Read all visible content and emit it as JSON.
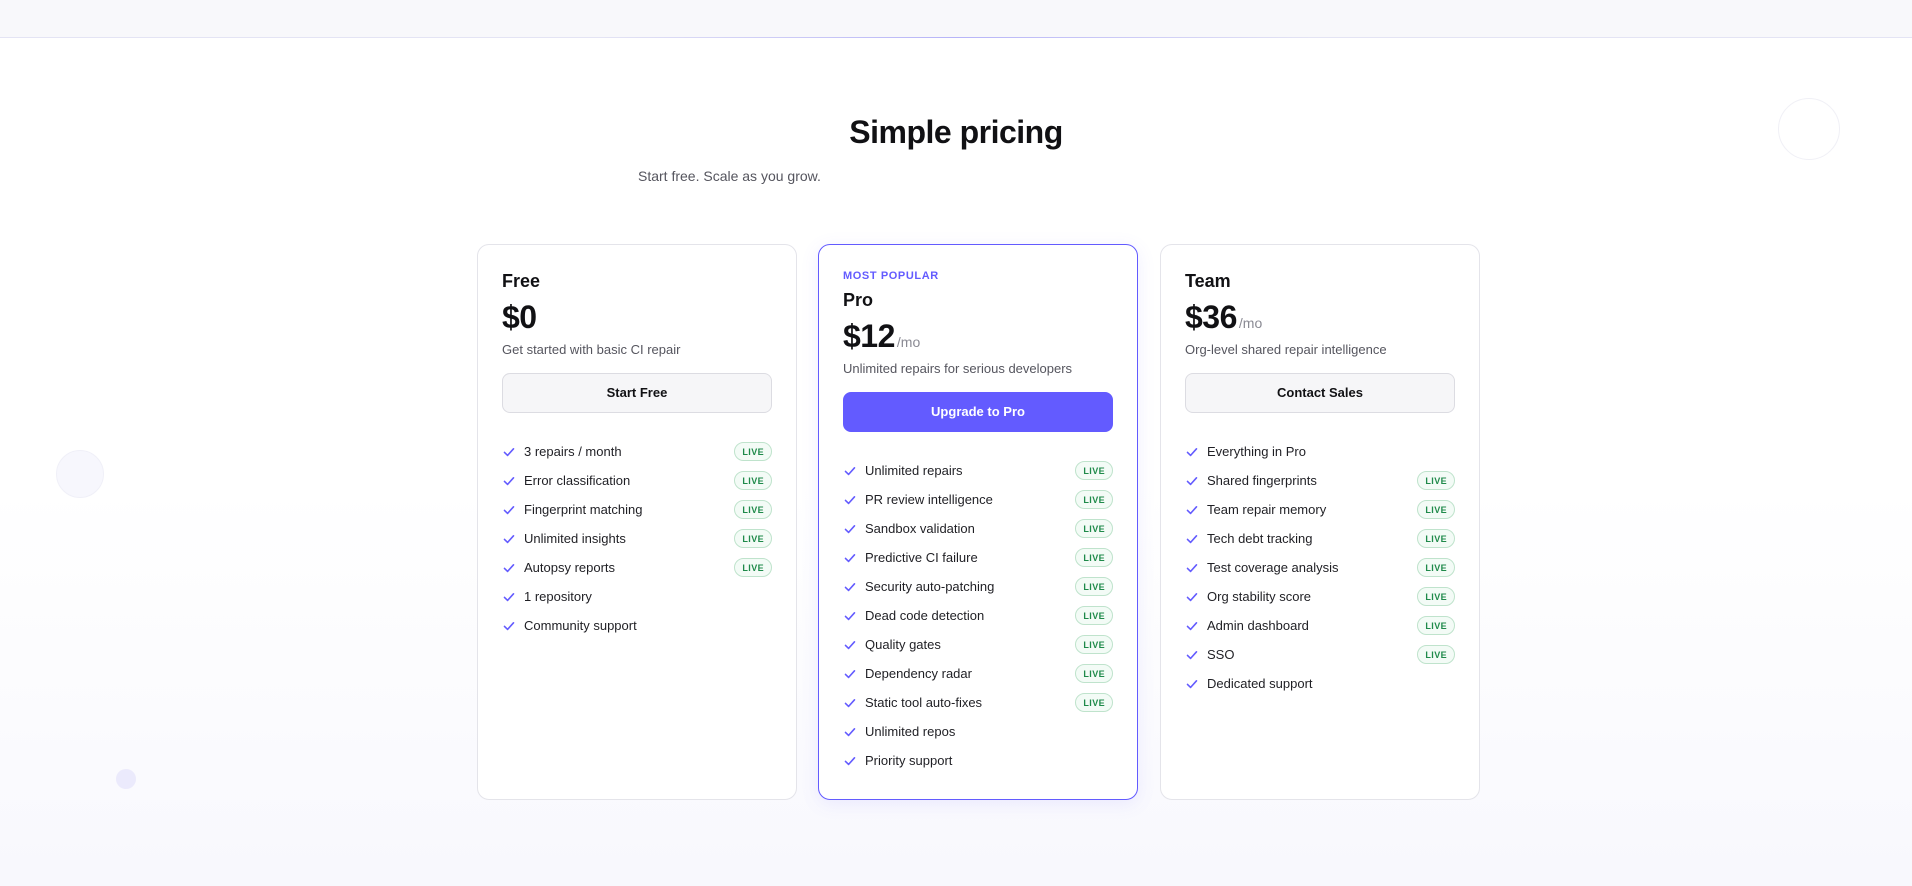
{
  "header": {
    "title": "Simple pricing",
    "subtitle": "Start free. Scale as you grow."
  },
  "colors": {
    "accent": "#635bff",
    "live_text": "#1f8a4a",
    "live_border": "#bfe3cc"
  },
  "icons": {
    "feature_check": "check-icon"
  },
  "plans": [
    {
      "name": "Free",
      "price": "$0",
      "period": "",
      "description": "Get started with basic CI repair",
      "button": "Start Free",
      "features": [
        {
          "label": "3 repairs / month",
          "badge": "LIVE"
        },
        {
          "label": "Error classification",
          "badge": "LIVE"
        },
        {
          "label": "Fingerprint matching",
          "badge": "LIVE"
        },
        {
          "label": "Unlimited insights",
          "badge": "LIVE"
        },
        {
          "label": "Autopsy reports",
          "badge": "LIVE"
        },
        {
          "label": "1 repository",
          "badge": ""
        },
        {
          "label": "Community support",
          "badge": ""
        }
      ]
    },
    {
      "name": "Pro",
      "tag": "MOST POPULAR",
      "price": "$12",
      "period": "/mo",
      "description": "Unlimited repairs for serious developers",
      "button": "Upgrade to Pro",
      "features": [
        {
          "label": "Unlimited repairs",
          "badge": "LIVE"
        },
        {
          "label": "PR review intelligence",
          "badge": "LIVE"
        },
        {
          "label": "Sandbox validation",
          "badge": "LIVE"
        },
        {
          "label": "Predictive CI failure",
          "badge": "LIVE"
        },
        {
          "label": "Security auto-patching",
          "badge": "LIVE"
        },
        {
          "label": "Dead code detection",
          "badge": "LIVE"
        },
        {
          "label": "Quality gates",
          "badge": "LIVE"
        },
        {
          "label": "Dependency radar",
          "badge": "LIVE"
        },
        {
          "label": "Static tool auto-fixes",
          "badge": "LIVE"
        },
        {
          "label": "Unlimited repos",
          "badge": ""
        },
        {
          "label": "Priority support",
          "badge": ""
        }
      ]
    },
    {
      "name": "Team",
      "price": "$36",
      "period": "/mo",
      "description": "Org-level shared repair intelligence",
      "button": "Contact Sales",
      "features": [
        {
          "label": "Everything in Pro",
          "badge": ""
        },
        {
          "label": "Shared fingerprints",
          "badge": "LIVE"
        },
        {
          "label": "Team repair memory",
          "badge": "LIVE"
        },
        {
          "label": "Tech debt tracking",
          "badge": "LIVE"
        },
        {
          "label": "Test coverage analysis",
          "badge": "LIVE"
        },
        {
          "label": "Org stability score",
          "badge": "LIVE"
        },
        {
          "label": "Admin dashboard",
          "badge": "LIVE"
        },
        {
          "label": "SSO",
          "badge": "LIVE"
        },
        {
          "label": "Dedicated support",
          "badge": ""
        }
      ]
    }
  ]
}
